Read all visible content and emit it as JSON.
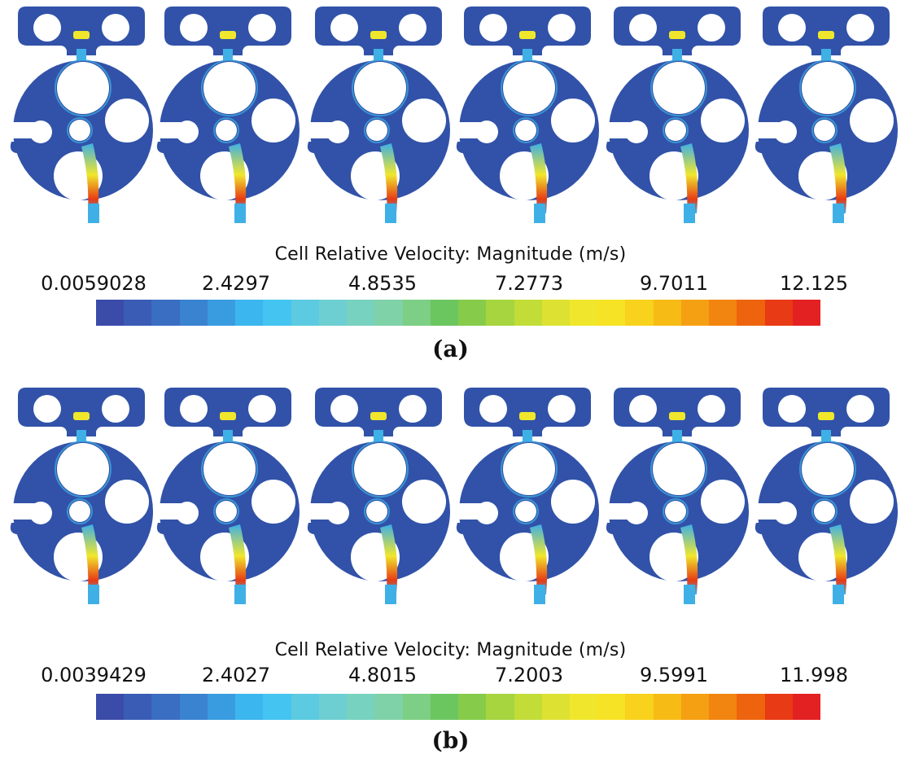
{
  "figure": {
    "panels": [
      {
        "label": "(a)",
        "scale_title": "Cell Relative Velocity: Magnitude (m/s)",
        "ticks": [
          "0.0059028",
          "2.4297",
          "4.8535",
          "7.2773",
          "9.7011",
          "12.125"
        ],
        "snapshot_count": 6,
        "gradient_phase": [
          0.0,
          0.25,
          0.5,
          0.75,
          1.0
        ]
      },
      {
        "label": "(b)",
        "scale_title": "Cell Relative Velocity: Magnitude (m/s)",
        "ticks": [
          "0.0039429",
          "2.4027",
          "4.8015",
          "7.2003",
          "9.5991",
          "11.998"
        ],
        "snapshot_count": 6,
        "gradient_phase": [
          0.0,
          0.25,
          0.5,
          0.75,
          1.0
        ]
      }
    ],
    "colormap": [
      "#3b4ba8",
      "#3a5cb5",
      "#3a6ec3",
      "#3a83d0",
      "#3a9ce0",
      "#3cb6ee",
      "#44c4f0",
      "#5ccae0",
      "#6ecfd2",
      "#78d2c0",
      "#7fd1a8",
      "#7ccf84",
      "#6cc660",
      "#86cc4a",
      "#a6d540",
      "#c2dd38",
      "#dde232",
      "#f0e72c",
      "#f7e325",
      "#f8d21c",
      "#f7bb16",
      "#f5a012",
      "#f2850f",
      "#ee640e",
      "#e83a14",
      "#e42122"
    ],
    "colors": {
      "fluid_low": "#3152a8",
      "fluid_mid": "#3fb0e6",
      "jet_mid": "#f0e72c",
      "jet_high": "#e83a14"
    }
  }
}
